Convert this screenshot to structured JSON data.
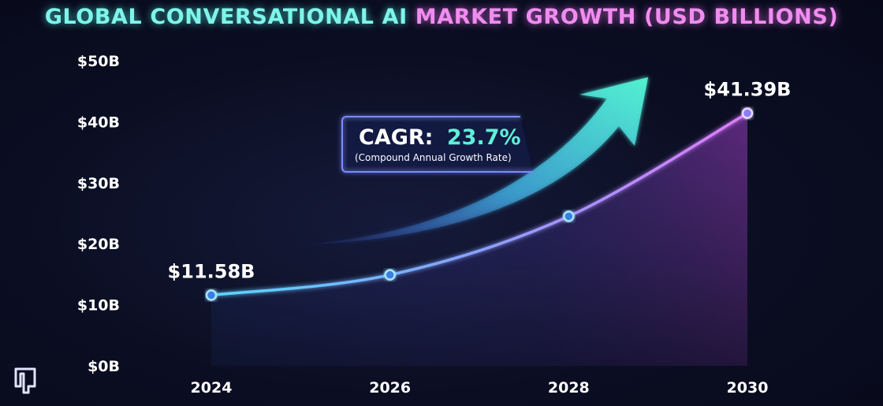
{
  "title_part1": "GLOBAL CONVERSATIONAL AI",
  "title_part2": "MARKET GROWTH (USD BILLIONS)",
  "chart_data": {
    "type": "area",
    "title": "GLOBAL CONVERSATIONAL AI MARKET GROWTH (USD BILLIONS)",
    "x": [
      2024,
      2026,
      2028,
      2030
    ],
    "x_tick_labels": [
      "2024",
      "2026",
      "2028",
      "2030"
    ],
    "values": [
      11.58,
      14.9,
      24.5,
      41.39
    ],
    "y_tick_labels": [
      "$0B",
      "$10B",
      "$20B",
      "$30B",
      "$40B",
      "$50B"
    ],
    "y_ticks": [
      0,
      10,
      20,
      30,
      40,
      50
    ],
    "ylim": [
      0,
      50
    ],
    "data_labels": [
      {
        "x": 2024,
        "text": "$11.58B"
      },
      {
        "x": 2030,
        "text": "$41.39B"
      }
    ],
    "annotation": {
      "cagr_label": "CAGR:",
      "cagr_value": "23.7%",
      "cagr_note": "(Compound Annual Growth Rate)"
    },
    "grid": false,
    "colors": {
      "line_start": "#5ad6ff",
      "line_end": "#e07cff",
      "arrow": "#4ee8d2",
      "axis": "#5aa0ff"
    }
  }
}
